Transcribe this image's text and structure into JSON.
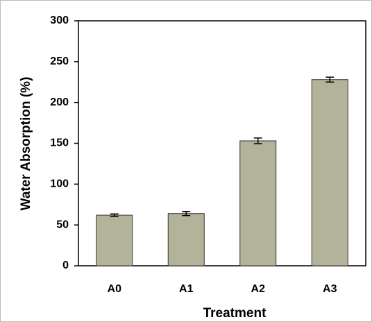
{
  "chart_data": {
    "type": "bar",
    "x_label": "Treatment",
    "y_label": "Water Absorption (%)",
    "categories": [
      "A0",
      "A1",
      "A2",
      "A3"
    ],
    "values": [
      62,
      64,
      153,
      228
    ],
    "errors": [
      1.5,
      2.5,
      3.5,
      3
    ],
    "color": "#b3b39a",
    "ylim": [
      0,
      300
    ],
    "yticks": [
      0,
      50,
      100,
      150,
      200,
      250,
      300
    ],
    "grid": false
  }
}
